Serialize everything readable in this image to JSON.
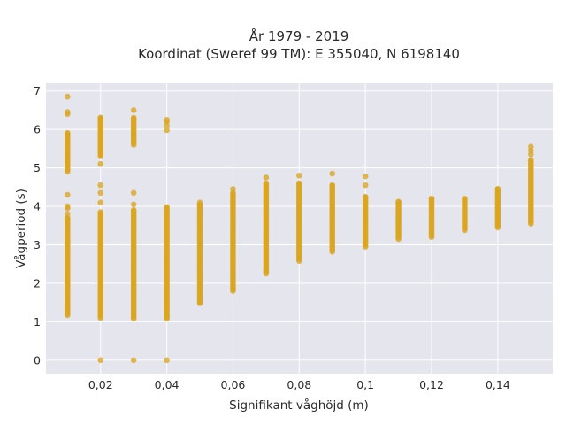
{
  "chart_data": {
    "type": "scatter",
    "title_line1": "År 1979 - 2019",
    "title_line2": "Koordinat (Sweref 99 TM): E 355040, N 6198140",
    "xlabel": "Signifikant våghöjd (m)",
    "ylabel": "Vågperiod (s)",
    "xlim": [
      0.0035,
      0.1566
    ],
    "ylim": [
      -0.35,
      7.2
    ],
    "x_ticks": [
      0.02,
      0.04,
      0.06,
      0.08,
      0.1,
      0.12,
      0.14
    ],
    "x_tick_labels": [
      "0,02",
      "0,04",
      "0,06",
      "0,08",
      "0,1",
      "0,12",
      "0,14"
    ],
    "y_ticks": [
      0,
      1,
      2,
      3,
      4,
      5,
      6,
      7
    ],
    "y_tick_labels": [
      "0",
      "1",
      "2",
      "3",
      "4",
      "5",
      "6",
      "7"
    ],
    "grid": true,
    "marker_color": "#DAA520",
    "background_color": "#E5E5EE",
    "columns": [
      {
        "x": 0.01,
        "ranges": [
          [
            1.17,
            3.7
          ],
          [
            4.9,
            5.9
          ]
        ],
        "points": [
          3.8,
          3.95,
          4.0,
          4.3,
          6.4,
          6.45,
          6.85
        ]
      },
      {
        "x": 0.02,
        "ranges": [
          [
            1.1,
            3.85
          ],
          [
            5.3,
            6.3
          ]
        ],
        "points": [
          0,
          4.1,
          4.35,
          4.55,
          5.1
        ]
      },
      {
        "x": 0.03,
        "ranges": [
          [
            1.08,
            3.9
          ],
          [
            5.6,
            6.3
          ]
        ],
        "points": [
          0,
          4.05,
          4.35,
          6.5
        ]
      },
      {
        "x": 0.04,
        "ranges": [
          [
            1.08,
            3.98
          ]
        ],
        "points": [
          0,
          5.98,
          6.1,
          6.2,
          6.25
        ]
      },
      {
        "x": 0.05,
        "ranges": [
          [
            1.48,
            4.05
          ]
        ],
        "points": [
          4.1
        ]
      },
      {
        "x": 0.06,
        "ranges": [
          [
            1.8,
            4.35
          ]
        ],
        "points": [
          4.45
        ]
      },
      {
        "x": 0.07,
        "ranges": [
          [
            2.25,
            4.6
          ]
        ],
        "points": [
          4.75
        ]
      },
      {
        "x": 0.08,
        "ranges": [
          [
            2.58,
            4.6
          ]
        ],
        "points": [
          4.8
        ]
      },
      {
        "x": 0.09,
        "ranges": [
          [
            2.82,
            4.55
          ]
        ],
        "points": [
          4.85
        ]
      },
      {
        "x": 0.1,
        "ranges": [
          [
            2.95,
            4.25
          ]
        ],
        "points": [
          4.55,
          4.78
        ]
      },
      {
        "x": 0.11,
        "ranges": [
          [
            3.15,
            4.12
          ]
        ],
        "points": []
      },
      {
        "x": 0.12,
        "ranges": [
          [
            3.2,
            4.2
          ]
        ],
        "points": []
      },
      {
        "x": 0.13,
        "ranges": [
          [
            3.38,
            4.2
          ]
        ],
        "points": []
      },
      {
        "x": 0.14,
        "ranges": [
          [
            3.45,
            4.45
          ]
        ],
        "points": []
      },
      {
        "x": 0.15,
        "ranges": [
          [
            3.55,
            5.2
          ]
        ],
        "points": [
          5.35,
          5.45,
          5.55
        ]
      }
    ]
  }
}
